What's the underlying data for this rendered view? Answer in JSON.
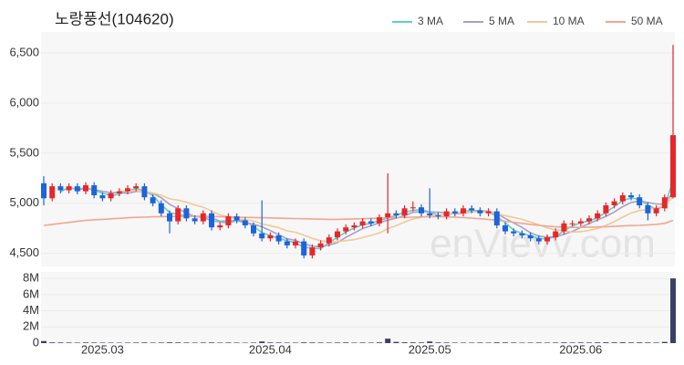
{
  "chart_data": {
    "type": "candlestick",
    "title": "노랑풍선(104620)",
    "watermark": "enVievv.com",
    "categories": [
      null,
      null,
      null,
      null,
      null,
      null,
      null,
      "2025.03",
      null,
      null,
      null,
      null,
      null,
      null,
      null,
      null,
      null,
      null,
      null,
      null,
      null,
      null,
      null,
      null,
      null,
      null,
      null,
      "2025.04",
      null,
      null,
      null,
      null,
      null,
      null,
      null,
      null,
      null,
      null,
      null,
      null,
      null,
      null,
      null,
      null,
      null,
      null,
      "2025.05",
      null,
      null,
      null,
      null,
      null,
      null,
      null,
      null,
      null,
      null,
      null,
      null,
      null,
      null,
      null,
      null,
      null,
      "2025.06",
      null,
      null,
      null,
      null,
      null,
      null,
      null,
      null,
      null,
      null,
      null
    ],
    "open": [
      5200,
      5050,
      5170,
      5130,
      5170,
      5120,
      5180,
      5080,
      5050,
      5100,
      5120,
      5150,
      5170,
      5060,
      5000,
      4900,
      4820,
      4950,
      4850,
      4820,
      4900,
      4760,
      4780,
      4870,
      4830,
      4780,
      4700,
      4650,
      4680,
      4620,
      4580,
      4620,
      4480,
      4560,
      4600,
      4660,
      4720,
      4760,
      4780,
      4820,
      4800,
      4860,
      4900,
      4880,
      4950,
      4960,
      4900,
      4880,
      4870,
      4920,
      4900,
      4950,
      4930,
      4900,
      4920,
      4780,
      4720,
      4700,
      4680,
      4650,
      4620,
      4660,
      4720,
      4800,
      4800,
      4820,
      4850,
      4900,
      4980,
      5020,
      5080,
      5060,
      4980,
      4900,
      4950,
      5060
    ],
    "high": [
      5270,
      5200,
      5200,
      5200,
      5200,
      5210,
      5210,
      5110,
      5130,
      5150,
      5180,
      5200,
      5200,
      5090,
      5030,
      4930,
      4980,
      4980,
      4880,
      4930,
      4930,
      4810,
      4900,
      4900,
      4860,
      4810,
      5030,
      4710,
      4710,
      4650,
      4650,
      4650,
      4590,
      4630,
      4690,
      4750,
      4790,
      4810,
      4850,
      4850,
      4890,
      5300,
      4930,
      4980,
      5020,
      4990,
      5150,
      4910,
      4950,
      4950,
      4980,
      4980,
      4960,
      4950,
      4950,
      4810,
      4750,
      4730,
      4710,
      4680,
      4690,
      4750,
      4830,
      4830,
      4850,
      4880,
      4930,
      5010,
      5050,
      5110,
      5110,
      5090,
      5010,
      4980,
      5090,
      6580
    ],
    "low": [
      4980,
      5020,
      5100,
      5100,
      5090,
      5090,
      5050,
      5020,
      5020,
      5070,
      5090,
      5120,
      5030,
      4970,
      4870,
      4700,
      4790,
      4820,
      4790,
      4790,
      4730,
      4730,
      4750,
      4800,
      4750,
      4670,
      4620,
      4620,
      4590,
      4550,
      4550,
      4450,
      4450,
      4530,
      4570,
      4630,
      4690,
      4730,
      4750,
      4770,
      4770,
      4700,
      4850,
      4850,
      4920,
      4870,
      4850,
      4840,
      4840,
      4870,
      4870,
      4900,
      4870,
      4870,
      4750,
      4690,
      4670,
      4650,
      4620,
      4590,
      4590,
      4630,
      4690,
      4770,
      4770,
      4790,
      4820,
      4870,
      4950,
      4990,
      5030,
      4950,
      4830,
      4870,
      4920,
      5050
    ],
    "close": [
      5050,
      5170,
      5130,
      5170,
      5120,
      5180,
      5080,
      5050,
      5100,
      5120,
      5150,
      5170,
      5060,
      5000,
      4900,
      4820,
      4950,
      4850,
      4820,
      4900,
      4760,
      4780,
      4870,
      4830,
      4780,
      4700,
      4650,
      4680,
      4620,
      4580,
      4620,
      4480,
      4560,
      4600,
      4660,
      4720,
      4760,
      4780,
      4820,
      4800,
      4860,
      4900,
      4880,
      4950,
      4960,
      4900,
      4880,
      4870,
      4920,
      4900,
      4950,
      4930,
      4900,
      4920,
      4780,
      4720,
      4700,
      4680,
      4650,
      4620,
      4660,
      4720,
      4800,
      4800,
      4820,
      4850,
      4900,
      4980,
      5020,
      5080,
      5060,
      4980,
      4900,
      4950,
      5060,
      5680
    ],
    "up_color": "#e8262b",
    "down_color": "#1e63dc",
    "series": [
      {
        "name": "3 MA",
        "color": "#63cfc6",
        "values": [
          null,
          null,
          5117,
          5157,
          5140,
          5157,
          5127,
          5103,
          5077,
          5090,
          5123,
          5147,
          5127,
          5077,
          4987,
          4907,
          4890,
          4873,
          4873,
          4857,
          4827,
          4813,
          4803,
          4827,
          4827,
          4770,
          4710,
          4677,
          4650,
          4627,
          4607,
          4560,
          4553,
          4547,
          4607,
          4660,
          4713,
          4753,
          4787,
          4800,
          4827,
          4853,
          4880,
          4910,
          4930,
          4937,
          4913,
          4883,
          4890,
          4897,
          4923,
          4927,
          4927,
          4917,
          4867,
          4807,
          4733,
          4700,
          4677,
          4650,
          4643,
          4667,
          4727,
          4773,
          4807,
          4823,
          4857,
          4910,
          4967,
          5027,
          5053,
          5040,
          4980,
          4943,
          4970,
          5230
        ]
      },
      {
        "name": "5 MA",
        "color": "#a99fcb",
        "values": [
          null,
          null,
          null,
          null,
          5128,
          5154,
          5136,
          5120,
          5106,
          5106,
          5100,
          5118,
          5120,
          5100,
          5056,
          4990,
          4946,
          4904,
          4868,
          4868,
          4856,
          4822,
          4826,
          4828,
          4804,
          4792,
          4766,
          4728,
          4686,
          4646,
          4630,
          4596,
          4572,
          4568,
          4584,
          4608,
          4660,
          4704,
          4748,
          4776,
          4804,
          4832,
          4852,
          4878,
          4910,
          4918,
          4914,
          4912,
          4906,
          4894,
          4904,
          4914,
          4920,
          4920,
          4896,
          4850,
          4804,
          4760,
          4706,
          4674,
          4662,
          4666,
          4690,
          4720,
          4760,
          4798,
          4834,
          4870,
          4914,
          4966,
          5008,
          5024,
          5008,
          4994,
          4990,
          5114
        ]
      },
      {
        "name": "10 MA",
        "color": "#f2c994",
        "values": [
          null,
          null,
          null,
          null,
          null,
          null,
          null,
          null,
          null,
          5117,
          5127,
          5127,
          5120,
          5103,
          5081,
          5045,
          5032,
          5012,
          4984,
          4962,
          4923,
          4884,
          4865,
          4848,
          4836,
          4824,
          4794,
          4777,
          4757,
          4725,
          4711,
          4681,
          4650,
          4627,
          4615,
          4617,
          4628,
          4638,
          4658,
          4680,
          4704,
          4746,
          4778,
          4813,
          4843,
          4861,
          4873,
          4882,
          4892,
          4902,
          4911,
          4914,
          4916,
          4913,
          4895,
          4877,
          4859,
          4840,
          4813,
          4785,
          4756,
          4735,
          4725,
          4713,
          4717,
          4730,
          4750,
          4780,
          4817,
          4863,
          4903,
          4929,
          4939,
          4954,
          4978,
          5061
        ]
      },
      {
        "name": "50 MA",
        "color": "#f2a593",
        "values": [
          4780,
          4790,
          4800,
          4810,
          4820,
          4830,
          4835,
          4840,
          4845,
          4850,
          4855,
          4860,
          4862,
          4865,
          4867,
          4868,
          4869,
          4870,
          4870,
          4870,
          4868,
          4866,
          4864,
          4862,
          4860,
          4858,
          4856,
          4854,
          4852,
          4850,
          4848,
          4846,
          4844,
          4842,
          4840,
          4840,
          4842,
          4844,
          4846,
          4850,
          4852,
          4855,
          4858,
          4860,
          4862,
          4864,
          4866,
          4866,
          4864,
          4862,
          4858,
          4852,
          4846,
          4840,
          4832,
          4822,
          4812,
          4800,
          4790,
          4780,
          4772,
          4766,
          4762,
          4760,
          4760,
          4762,
          4764,
          4766,
          4770,
          4774,
          4778,
          4780,
          4784,
          4790,
          4800,
          4830
        ]
      }
    ],
    "ylim": [
      4370,
      6710
    ],
    "yticks": [
      {
        "value": 4500,
        "label": "4,500"
      },
      {
        "value": 5000,
        "label": "5,000"
      },
      {
        "value": 5500,
        "label": "5,500"
      },
      {
        "value": 6000,
        "label": "6,000"
      },
      {
        "value": 6500,
        "label": "6,500"
      }
    ],
    "grid": true,
    "volume": {
      "color": "#3c4066",
      "values": [
        250000,
        90000,
        80000,
        70000,
        60000,
        80000,
        70000,
        60000,
        60000,
        50000,
        60000,
        70000,
        80000,
        60000,
        70000,
        90000,
        80000,
        70000,
        60000,
        70000,
        80000,
        60000,
        70000,
        60000,
        50000,
        60000,
        200000,
        80000,
        70000,
        60000,
        60000,
        90000,
        80000,
        70000,
        60000,
        70000,
        80000,
        60000,
        70000,
        60000,
        90000,
        550000,
        150000,
        100000,
        90000,
        80000,
        200000,
        80000,
        70000,
        60000,
        60000,
        60000,
        70000,
        60000,
        90000,
        80000,
        70000,
        60000,
        60000,
        70000,
        60000,
        70000,
        90000,
        70000,
        80000,
        70000,
        90000,
        100000,
        90000,
        100000,
        80000,
        90000,
        80000,
        70000,
        150000,
        8000000
      ],
      "ylim": [
        0,
        8800000
      ],
      "yticks": [
        0,
        {
          "value": 2000000,
          "label": "2M"
        },
        {
          "value": 4000000,
          "label": "4M"
        },
        {
          "value": 6000000,
          "label": "6M"
        },
        {
          "value": 8000000,
          "label": "8M"
        }
      ]
    }
  }
}
